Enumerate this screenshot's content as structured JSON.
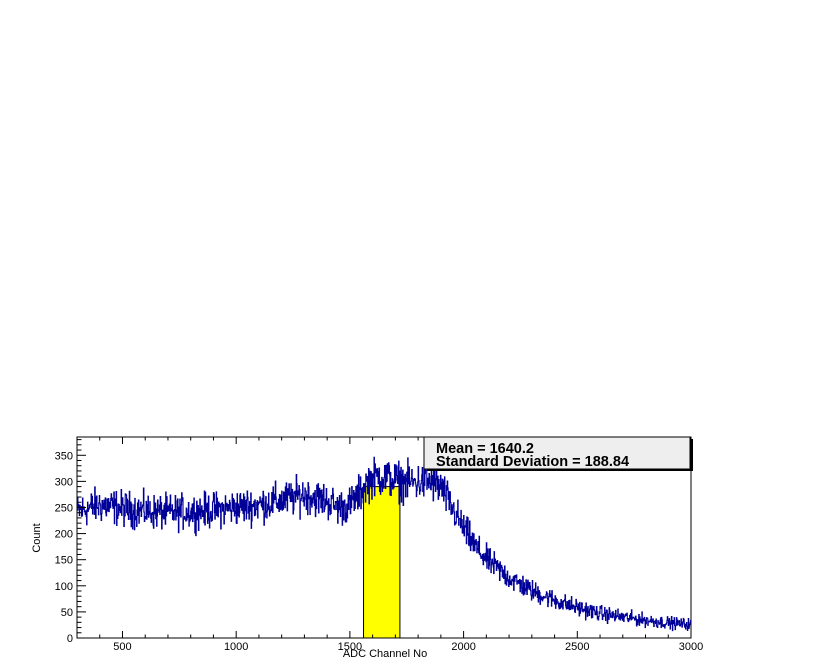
{
  "chart_data": {
    "type": "line",
    "title": "",
    "xlabel": "ADC Channel No",
    "ylabel": "Count",
    "xlim": [
      300,
      3000
    ],
    "ylim": [
      0,
      385
    ],
    "x_ticks": [
      500,
      1000,
      1500,
      2000,
      2500,
      3000
    ],
    "y_ticks": [
      0,
      50,
      100,
      150,
      200,
      250,
      300,
      350
    ],
    "grid": false,
    "series": [
      {
        "color": "#000099",
        "x": [
          300,
          400,
          500,
          600,
          700,
          800,
          900,
          1000,
          1100,
          1200,
          1300,
          1400,
          1450,
          1500,
          1540,
          1580,
          1620,
          1650,
          1700,
          1750,
          1800,
          1850,
          1900,
          1950,
          2000,
          2050,
          2100,
          2200,
          2300,
          2400,
          2500,
          2600,
          2700,
          2800,
          2900,
          3000
        ],
        "y": [
          242,
          255,
          248,
          243,
          240,
          242,
          245,
          250,
          255,
          263,
          275,
          262,
          250,
          255,
          275,
          300,
          310,
          308,
          302,
          298,
          298,
          300,
          288,
          248,
          210,
          175,
          150,
          115,
          90,
          72,
          58,
          47,
          40,
          34,
          29,
          26
        ]
      }
    ],
    "highlight": {
      "x_start": 1560,
      "x_end": 1720,
      "height": 290,
      "color": "#ffff00"
    },
    "stats": {
      "mean_label": "Mean = 1640.2",
      "std_label": "Standard Deviation = 188.84"
    }
  }
}
